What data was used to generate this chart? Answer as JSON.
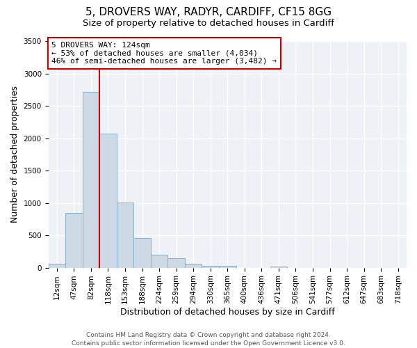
{
  "title": "5, DROVERS WAY, RADYR, CARDIFF, CF15 8GG",
  "subtitle": "Size of property relative to detached houses in Cardiff",
  "xlabel": "Distribution of detached houses by size in Cardiff",
  "ylabel": "Number of detached properties",
  "bin_labels": [
    "12sqm",
    "47sqm",
    "82sqm",
    "118sqm",
    "153sqm",
    "188sqm",
    "224sqm",
    "259sqm",
    "294sqm",
    "330sqm",
    "365sqm",
    "400sqm",
    "436sqm",
    "471sqm",
    "506sqm",
    "541sqm",
    "577sqm",
    "612sqm",
    "647sqm",
    "683sqm",
    "718sqm"
  ],
  "bar_heights": [
    60,
    840,
    2720,
    2070,
    1010,
    455,
    205,
    150,
    65,
    30,
    25,
    0,
    0,
    20,
    0,
    0,
    0,
    0,
    0,
    0,
    0
  ],
  "bar_color": "#cdd9e5",
  "bar_edge_color": "#8aafc8",
  "property_line_label": "5 DROVERS WAY: 124sqm",
  "annotation_line1": "← 53% of detached houses are smaller (4,034)",
  "annotation_line2": "46% of semi-detached houses are larger (3,482) →",
  "annotation_box_color": "#ffffff",
  "annotation_box_edge_color": "#cc0000",
  "vline_color": "#cc0000",
  "ylim": [
    0,
    3500
  ],
  "yticks": [
    0,
    500,
    1000,
    1500,
    2000,
    2500,
    3000,
    3500
  ],
  "footer_line1": "Contains HM Land Registry data © Crown copyright and database right 2024.",
  "footer_line2": "Contains public sector information licensed under the Open Government Licence v3.0.",
  "bg_color": "#ffffff",
  "plot_bg_color": "#eef2f7",
  "title_fontsize": 11,
  "subtitle_fontsize": 9.5,
  "axis_label_fontsize": 9,
  "tick_fontsize": 7.5,
  "footer_fontsize": 6.5,
  "vline_x_bin": 3
}
